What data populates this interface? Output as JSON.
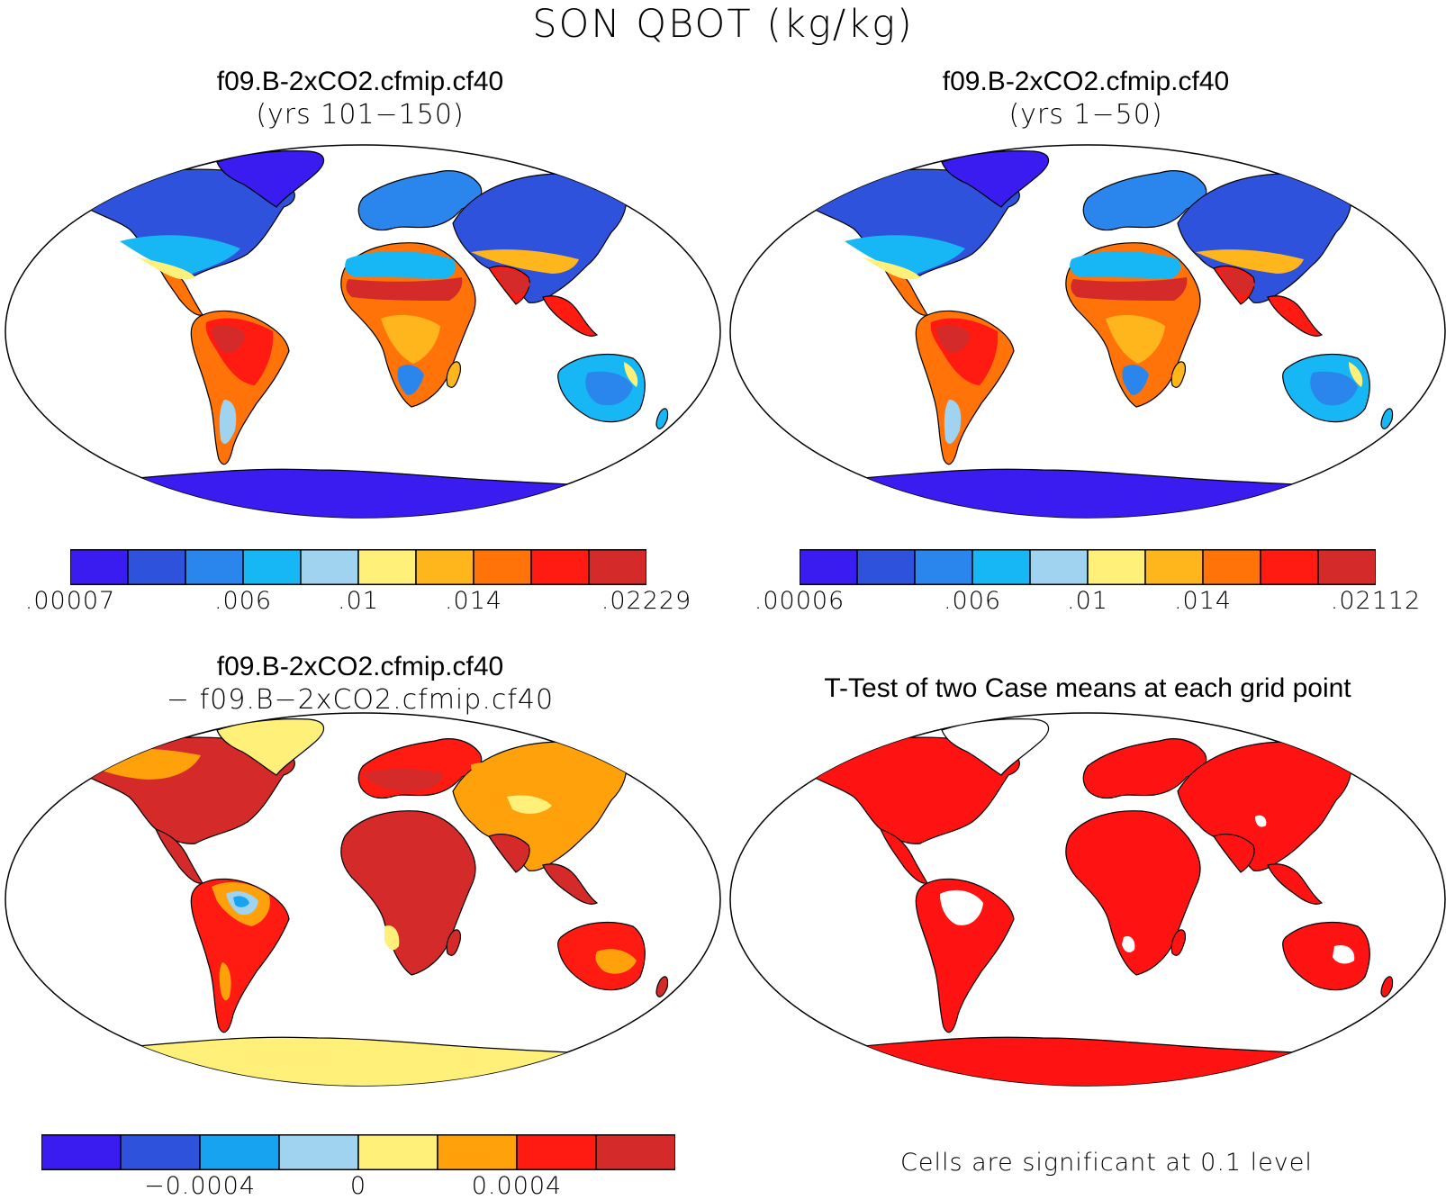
{
  "title": "SON QBOT (kg/kg)",
  "panels": [
    {
      "title": "f09.B-2xCO2.cfmip.cf40",
      "subtitle": "(yrs 101−150)",
      "colors_scheme": "abs"
    },
    {
      "title": "f09.B-2xCO2.cfmip.cf40",
      "subtitle": "(yrs 1−50)",
      "colors_scheme": "abs"
    },
    {
      "title": "f09.B-2xCO2.cfmip.cf40",
      "subtitle": "− f09.B−2xCO2.cfmip.cf40",
      "colors_scheme": "diff"
    },
    {
      "title": "T-Test of two Case means at each grid point",
      "subtitle": "",
      "colors_scheme": "ttest"
    }
  ],
  "colorbars": [
    {
      "colors": [
        "#3a1cf0",
        "#2f52dc",
        "#2a86ec",
        "#17b6f4",
        "#9fd3ef",
        "#fff07a",
        "#ffb51c",
        "#ff7309",
        "#ff1a12",
        "#d42a2a"
      ],
      "labels": [
        ".00007",
        ".006",
        ".01",
        ".014",
        ".02229"
      ],
      "label_positions": [
        0,
        3,
        5,
        7,
        10
      ]
    },
    {
      "colors": [
        "#3a1cf0",
        "#2f52dc",
        "#2a86ec",
        "#17b6f4",
        "#9fd3ef",
        "#fff07a",
        "#ffb51c",
        "#ff7309",
        "#ff1a12",
        "#d42a2a"
      ],
      "labels": [
        ".00006",
        ".006",
        ".01",
        ".014",
        ".02112"
      ],
      "label_positions": [
        0,
        3,
        5,
        7,
        10
      ]
    },
    {
      "colors": [
        "#3a1cf0",
        "#2f52dc",
        "#17a3f0",
        "#9fd3ef",
        "#fff07a",
        "#ffa10a",
        "#ff1a12",
        "#d42a2a"
      ],
      "labels": [
        "−0.0004",
        "0",
        "0.0004"
      ],
      "label_positions": [
        2,
        4,
        6
      ]
    }
  ],
  "significance_note": "Cells are significant at 0.1 level",
  "significance_color": "#ff1212"
}
